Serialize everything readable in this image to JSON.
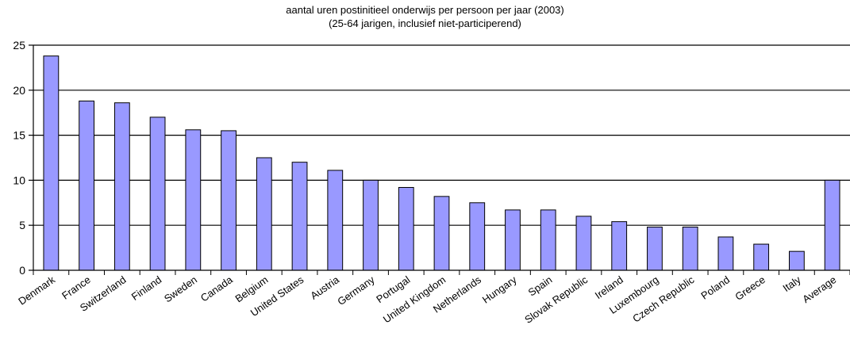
{
  "chart_data": {
    "type": "bar",
    "title": "aantal uren postinitieel onderwijs per persoon per jaar (2003)",
    "subtitle": "(25-64 jarigen, inclusief niet-participerend)",
    "xlabel": "",
    "ylabel": "",
    "ylim": [
      0,
      25
    ],
    "yticks": [
      0,
      5,
      10,
      15,
      20,
      25
    ],
    "grid": true,
    "legend": "none",
    "bar_color": "#9999ff",
    "categories": [
      "Denmark",
      "France",
      "Switzerland",
      "Finland",
      "Sweden",
      "Canada",
      "Belgium",
      "United States",
      "Austria",
      "Germany",
      "Portugal",
      "United Kingdom",
      "Netherlands",
      "Hungary",
      "Spain",
      "Slovak Republic",
      "Ireland",
      "Luxembourg",
      "Czech Republic",
      "Poland",
      "Greece",
      "Italy",
      "Average"
    ],
    "values": [
      23.8,
      18.8,
      18.6,
      17.0,
      15.6,
      15.5,
      12.5,
      12.0,
      11.1,
      10.0,
      9.2,
      8.2,
      7.5,
      6.7,
      6.7,
      6.0,
      5.4,
      4.8,
      4.8,
      3.7,
      2.9,
      2.1,
      10.0
    ]
  }
}
